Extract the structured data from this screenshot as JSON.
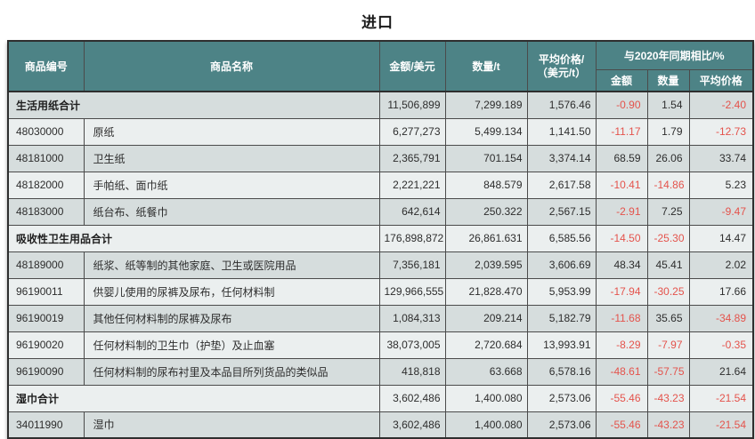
{
  "page": {
    "title": "进口"
  },
  "colors": {
    "header_bg": "#4d8386",
    "header_text": "#ffffff",
    "row_dark": "#d6dddd",
    "row_light": "#ebefef",
    "negative_value": "#e4534c",
    "body_text": "#2d2d2d"
  },
  "table": {
    "headers": {
      "code": "商品编号",
      "name": "商品名称",
      "amount": "金额/美元",
      "quantity": "数量/t",
      "avg_price_line1": "平均价格/",
      "avg_price_line2": "（美元/t）",
      "yoy_group": "与2020年同期相比/%",
      "yoy_amount": "金额",
      "yoy_quantity": "数量",
      "yoy_avg_price": "平均价格"
    },
    "rows": [
      {
        "code": "",
        "name": "生活用纸合计",
        "subtotal": true,
        "amount": "11,506,899",
        "quantity": "7,299.189",
        "avg_price": "1,576.46",
        "yoy_amount": "-0.90",
        "yoy_quantity": "1.54",
        "yoy_avg_price": "-2.40"
      },
      {
        "code": "48030000",
        "name": "原纸",
        "subtotal": false,
        "amount": "6,277,273",
        "quantity": "5,499.134",
        "avg_price": "1,141.50",
        "yoy_amount": "-11.17",
        "yoy_quantity": "1.79",
        "yoy_avg_price": "-12.73"
      },
      {
        "code": "48181000",
        "name": "卫生纸",
        "subtotal": false,
        "amount": "2,365,791",
        "quantity": "701.154",
        "avg_price": "3,374.14",
        "yoy_amount": "68.59",
        "yoy_quantity": "26.06",
        "yoy_avg_price": "33.74"
      },
      {
        "code": "48182000",
        "name": "手帕纸、面巾纸",
        "subtotal": false,
        "amount": "2,221,221",
        "quantity": "848.579",
        "avg_price": "2,617.58",
        "yoy_amount": "-10.41",
        "yoy_quantity": "-14.86",
        "yoy_avg_price": "5.23"
      },
      {
        "code": "48183000",
        "name": "纸台布、纸餐巾",
        "subtotal": false,
        "amount": "642,614",
        "quantity": "250.322",
        "avg_price": "2,567.15",
        "yoy_amount": "-2.91",
        "yoy_quantity": "7.25",
        "yoy_avg_price": "-9.47"
      },
      {
        "code": "",
        "name": "吸收性卫生用品合计",
        "subtotal": true,
        "amount": "176,898,872",
        "quantity": "26,861.631",
        "avg_price": "6,585.56",
        "yoy_amount": "-14.50",
        "yoy_quantity": "-25.30",
        "yoy_avg_price": "14.47"
      },
      {
        "code": "48189000",
        "name": "纸浆、纸等制的其他家庭、卫生或医院用品",
        "subtotal": false,
        "amount": "7,356,181",
        "quantity": "2,039.595",
        "avg_price": "3,606.69",
        "yoy_amount": "48.34",
        "yoy_quantity": "45.41",
        "yoy_avg_price": "2.02"
      },
      {
        "code": "96190011",
        "name": "供婴儿使用的尿裤及尿布，任何材料制",
        "subtotal": false,
        "amount": "129,966,555",
        "quantity": "21,828.470",
        "avg_price": "5,953.99",
        "yoy_amount": "-17.94",
        "yoy_quantity": "-30.25",
        "yoy_avg_price": "17.66"
      },
      {
        "code": "96190019",
        "name": "其他任何材料制的尿裤及尿布",
        "subtotal": false,
        "amount": "1,084,313",
        "quantity": "209.214",
        "avg_price": "5,182.79",
        "yoy_amount": "-11.68",
        "yoy_quantity": "35.65",
        "yoy_avg_price": "-34.89"
      },
      {
        "code": "96190020",
        "name": "任何材料制的卫生巾（护垫）及止血塞",
        "subtotal": false,
        "amount": "38,073,005",
        "quantity": "2,720.684",
        "avg_price": "13,993.91",
        "yoy_amount": "-8.29",
        "yoy_quantity": "-7.97",
        "yoy_avg_price": "-0.35"
      },
      {
        "code": "96190090",
        "name": "任何材料制的尿布衬里及本品目所列货品的类似品",
        "subtotal": false,
        "amount": "418,818",
        "quantity": "63.668",
        "avg_price": "6,578.16",
        "yoy_amount": "-48.61",
        "yoy_quantity": "-57.75",
        "yoy_avg_price": "21.64"
      },
      {
        "code": "",
        "name": "湿巾合计",
        "subtotal": true,
        "amount": "3,602,486",
        "quantity": "1,400.080",
        "avg_price": "2,573.06",
        "yoy_amount": "-55.46",
        "yoy_quantity": "-43.23",
        "yoy_avg_price": "-21.54"
      },
      {
        "code": "34011990",
        "name": "湿巾",
        "subtotal": false,
        "amount": "3,602,486",
        "quantity": "1,400.080",
        "avg_price": "2,573.06",
        "yoy_amount": "-55.46",
        "yoy_quantity": "-43.23",
        "yoy_avg_price": "-21.54"
      }
    ]
  }
}
